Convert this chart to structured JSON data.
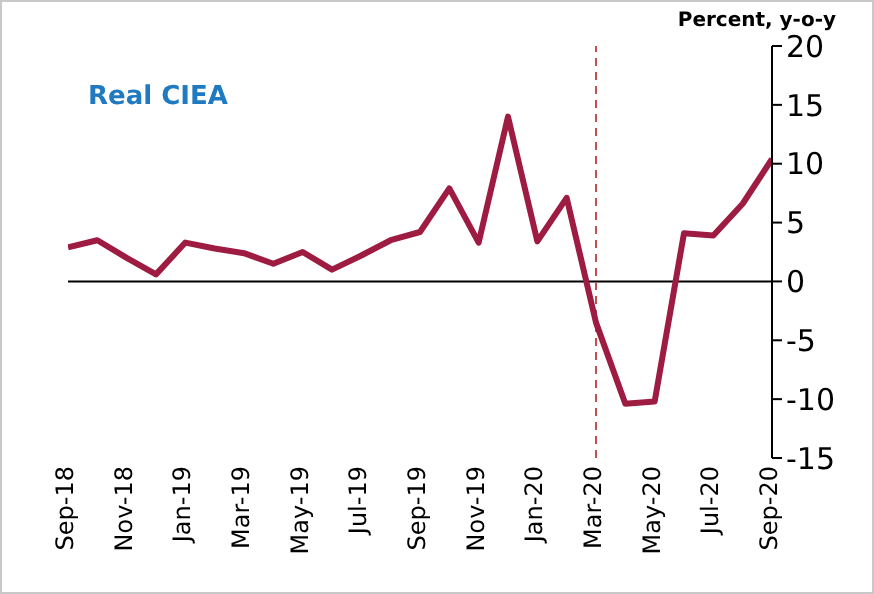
{
  "chart_data": {
    "type": "line",
    "ylabel": "Percent, y-o-y",
    "annotations": [
      "Real CIEA"
    ],
    "categories": [
      "Sep-18",
      null,
      "Nov-18",
      null,
      "Jan-19",
      null,
      "Mar-19",
      null,
      "May-19",
      null,
      "Jul-19",
      null,
      "Sep-19",
      null,
      "Nov-19",
      null,
      "Jan-20",
      null,
      "Mar-20",
      null,
      "May-20",
      null,
      "Jul-20",
      null,
      "Sep-20"
    ],
    "series": [
      {
        "color": "#9e1b42",
        "values": [
          2.9,
          3.5,
          2.0,
          0.6,
          3.3,
          2.8,
          2.4,
          1.5,
          2.5,
          1.0,
          2.2,
          3.5,
          4.2,
          7.9,
          3.3,
          14.0,
          3.4,
          7.1,
          -3.5,
          -10.4,
          -10.2,
          4.1,
          3.9,
          6.6,
          10.4
        ]
      }
    ],
    "ylim": [
      -15,
      20
    ],
    "yticks": [
      -15,
      -10,
      -5,
      0,
      5,
      10,
      15,
      20
    ],
    "ref_lines": [
      {
        "axis": "x",
        "value": "Mar-20",
        "color": "#c0504d",
        "line_style": "dashed"
      }
    ],
    "marker": "none",
    "line_style": "solid"
  }
}
